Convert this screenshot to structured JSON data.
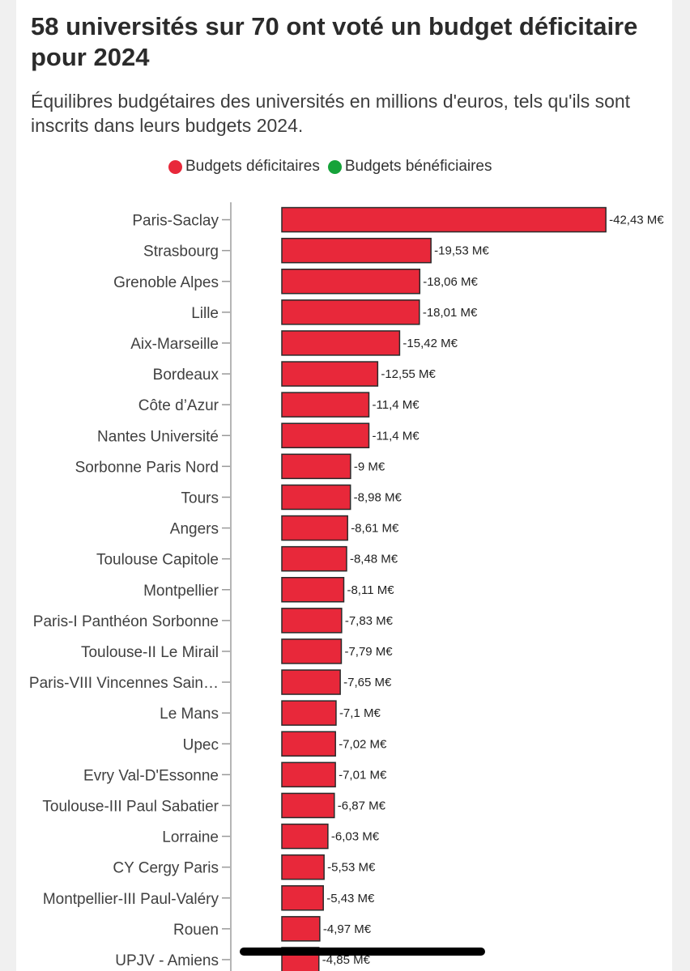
{
  "title": "58 universités sur 70 ont voté un budget déficitaire pour 2024",
  "subtitle": "Équilibres budgétaires des universités en millions d'euros, tels qu'ils sont inscrits dans leurs budgets 2024.",
  "legend": [
    {
      "label": "Budgets déficitaires",
      "color": "#e8283a"
    },
    {
      "label": "Budgets bénéficiaires",
      "color": "#16a33a"
    }
  ],
  "chart_data": {
    "type": "bar",
    "orientation": "horizontal",
    "title": "58 universités sur 70 ont voté un budget déficitaire pour 2024",
    "subtitle": "Équilibres budgétaires des universités en millions d'euros, tels qu'ils sont inscrits dans leurs budgets 2024.",
    "unit": "M€",
    "legend_position": "top",
    "grid": false,
    "categories": [
      "Paris-Saclay",
      "Strasbourg",
      "Grenoble Alpes",
      "Lille",
      "Aix-Marseille",
      "Bordeaux",
      "Côte d’Azur",
      "Nantes Université",
      "Sorbonne Paris Nord",
      "Tours",
      "Angers",
      "Toulouse Capitole",
      "Montpellier",
      "Paris-I Panthéon Sorbonne",
      "Toulouse-II Le Mirail",
      "Paris-VIII Vincennes Sain…",
      "Le Mans",
      "Upec",
      "Evry Val-D'Essonne",
      "Toulouse-III Paul Sabatier",
      "Lorraine",
      "CY Cergy Paris",
      "Montpellier-III Paul-Valéry",
      "Rouen",
      "UPJV - Amiens"
    ],
    "values": [
      -42.43,
      -19.53,
      -18.06,
      -18.01,
      -15.42,
      -12.55,
      -11.4,
      -11.4,
      -9,
      -8.98,
      -8.61,
      -8.48,
      -8.11,
      -7.83,
      -7.79,
      -7.65,
      -7.1,
      -7.02,
      -7.01,
      -6.87,
      -6.03,
      -5.53,
      -5.43,
      -4.97,
      -4.85
    ],
    "labels": [
      "-42,43 M€",
      "-19,53 M€",
      "-18,06 M€",
      "-18,01 M€",
      "-15,42 M€",
      "-12,55 M€",
      "-11,4 M€",
      "-11,4 M€",
      "-9 M€",
      "-8,98 M€",
      "-8,61 M€",
      "-8,48 M€",
      "-8,11 M€",
      "-7,83 M€",
      "-7,79 M€",
      "-7,65 M€",
      "-7,1 M€",
      "-7,02 M€",
      "-7,01 M€",
      "-6,87 M€",
      "-6,03 M€",
      "-5,53 M€",
      "-5,43 M€",
      "-4,97 M€",
      "-4,85 M€"
    ],
    "series": [
      {
        "name": "Budgets déficitaires",
        "color": "#e8283a"
      }
    ]
  }
}
